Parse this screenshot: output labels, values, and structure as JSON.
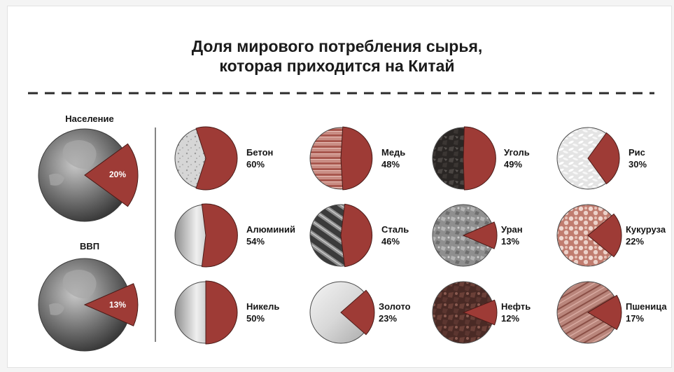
{
  "chart_data": {
    "type": "pie",
    "title_lines": [
      "Доля мирового потребления сырья,",
      "которая приходится на Китай"
    ],
    "colors": {
      "share": "#9e3b36",
      "share_stroke": "#4a1b18"
    },
    "highlights": [
      {
        "label": "Население",
        "value": 20,
        "value_label": "20%",
        "icon": "globe-asia-icon"
      },
      {
        "label": "ВВП",
        "value": 13,
        "value_label": "13%",
        "icon": "globe-asia-icon"
      }
    ],
    "commodities": [
      {
        "label": "Бетон",
        "value": 60,
        "value_label": "60%",
        "icon": "concrete-texture-icon"
      },
      {
        "label": "Медь",
        "value": 48,
        "value_label": "48%",
        "icon": "copper-wire-icon"
      },
      {
        "label": "Уголь",
        "value": 49,
        "value_label": "49%",
        "icon": "coal-lumps-icon"
      },
      {
        "label": "Рис",
        "value": 30,
        "value_label": "30%",
        "icon": "rice-grains-icon"
      },
      {
        "label": "Алюминий",
        "value": 54,
        "value_label": "54%",
        "icon": "aluminium-sheet-icon"
      },
      {
        "label": "Сталь",
        "value": 46,
        "value_label": "46%",
        "icon": "steel-rebar-icon"
      },
      {
        "label": "Уран",
        "value": 13,
        "value_label": "13%",
        "icon": "uranium-ore-icon"
      },
      {
        "label": "Кукуруза",
        "value": 22,
        "value_label": "22%",
        "icon": "corn-kernels-icon"
      },
      {
        "label": "Никель",
        "value": 50,
        "value_label": "50%",
        "icon": "nickel-metal-icon"
      },
      {
        "label": "Золото",
        "value": 23,
        "value_label": "23%",
        "icon": "gold-bar-icon"
      },
      {
        "label": "Нефть",
        "value": 12,
        "value_label": "12%",
        "icon": "oil-crude-icon"
      },
      {
        "label": "Пшеница",
        "value": 17,
        "value_label": "17%",
        "icon": "wheat-ears-icon"
      }
    ]
  }
}
